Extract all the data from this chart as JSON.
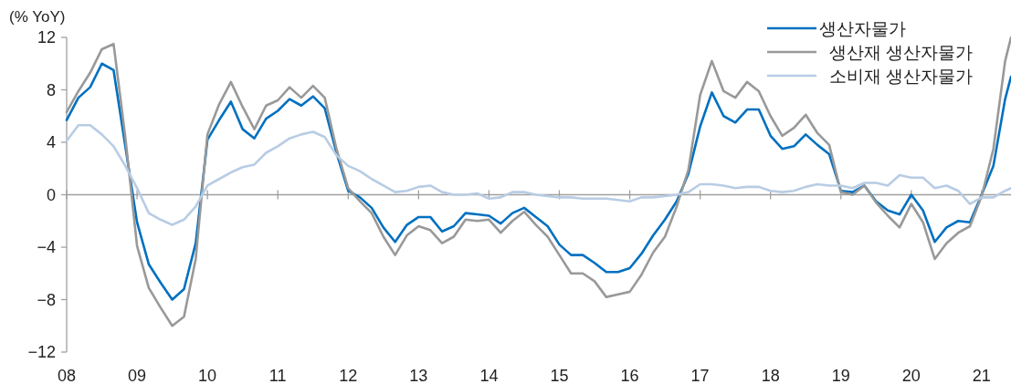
{
  "chart_data": {
    "type": "line",
    "ylabel": "(% YoY)",
    "x": [
      "2008-01",
      "2008-03",
      "2008-05",
      "2008-07",
      "2008-09",
      "2008-11",
      "2009-01",
      "2009-03",
      "2009-05",
      "2009-07",
      "2009-09",
      "2009-11",
      "2010-01",
      "2010-03",
      "2010-05",
      "2010-07",
      "2010-09",
      "2010-11",
      "2011-01",
      "2011-03",
      "2011-05",
      "2011-07",
      "2011-09",
      "2011-11",
      "2012-01",
      "2012-03",
      "2012-05",
      "2012-07",
      "2012-09",
      "2012-11",
      "2013-01",
      "2013-03",
      "2013-05",
      "2013-07",
      "2013-09",
      "2013-11",
      "2014-01",
      "2014-03",
      "2014-05",
      "2014-07",
      "2014-09",
      "2014-11",
      "2015-01",
      "2015-03",
      "2015-05",
      "2015-07",
      "2015-09",
      "2015-11",
      "2016-01",
      "2016-03",
      "2016-05",
      "2016-07",
      "2016-09",
      "2016-11",
      "2017-01",
      "2017-03",
      "2017-05",
      "2017-07",
      "2017-09",
      "2017-11",
      "2018-01",
      "2018-03",
      "2018-05",
      "2018-07",
      "2018-09",
      "2018-11",
      "2019-01",
      "2019-03",
      "2019-05",
      "2019-07",
      "2019-09",
      "2019-11",
      "2020-01",
      "2020-03",
      "2020-05",
      "2020-07",
      "2020-09",
      "2020-11",
      "2021-01",
      "2021-03",
      "2021-05",
      "2021-06"
    ],
    "series": [
      {
        "name": "생산자물가",
        "color": "#0070c0",
        "values": [
          5.7,
          7.4,
          8.2,
          10.0,
          9.5,
          3.7,
          -2.1,
          -5.3,
          -6.7,
          -8.0,
          -7.2,
          -3.7,
          4.2,
          5.7,
          7.1,
          5.0,
          4.3,
          5.8,
          6.4,
          7.3,
          6.8,
          7.5,
          6.6,
          3.2,
          0.3,
          -0.2,
          -1.0,
          -2.5,
          -3.6,
          -2.3,
          -1.7,
          -1.7,
          -2.8,
          -2.4,
          -1.4,
          -1.5,
          -1.6,
          -2.2,
          -1.4,
          -1.0,
          -1.7,
          -2.4,
          -3.8,
          -4.6,
          -4.6,
          -5.2,
          -5.9,
          -5.9,
          -5.6,
          -4.5,
          -3.1,
          -1.9,
          -0.5,
          1.6,
          5.2,
          7.8,
          6.0,
          5.5,
          6.5,
          6.5,
          4.5,
          3.5,
          3.7,
          4.6,
          3.8,
          3.1,
          0.3,
          0.2,
          0.7,
          -0.5,
          -1.2,
          -1.5,
          0.0,
          -1.2,
          -3.6,
          -2.5,
          -2.0,
          -2.1,
          0.0,
          2.2,
          7.3,
          9.0
        ]
      },
      {
        "name": "  생산재 생산자물가",
        "color": "#999999",
        "values": [
          6.3,
          7.9,
          9.3,
          11.1,
          11.5,
          4.4,
          -3.9,
          -7.1,
          -8.6,
          -10.0,
          -9.3,
          -4.9,
          4.6,
          6.9,
          8.6,
          6.7,
          5.0,
          6.8,
          7.2,
          8.2,
          7.4,
          8.3,
          7.4,
          3.5,
          0.5,
          -0.5,
          -1.4,
          -3.2,
          -4.6,
          -3.1,
          -2.4,
          -2.7,
          -3.7,
          -3.2,
          -1.9,
          -2.0,
          -1.9,
          -2.9,
          -2.0,
          -1.3,
          -2.3,
          -3.2,
          -4.6,
          -6.0,
          -6.0,
          -6.6,
          -7.8,
          -7.6,
          -7.4,
          -6.1,
          -4.4,
          -3.2,
          -0.9,
          1.9,
          7.6,
          10.2,
          7.9,
          7.4,
          8.6,
          7.9,
          6.0,
          4.5,
          5.1,
          6.1,
          4.7,
          3.8,
          0.2,
          0.0,
          0.7,
          -0.6,
          -1.6,
          -2.5,
          -0.7,
          -2.1,
          -4.9,
          -3.7,
          -2.9,
          -2.4,
          -0.1,
          3.5,
          10.2,
          12.0
        ]
      },
      {
        "name": "  소비재 생산자물가",
        "color": "#b8cce4",
        "values": [
          4.1,
          5.3,
          5.3,
          4.6,
          3.7,
          2.2,
          0.5,
          -1.4,
          -1.9,
          -2.3,
          -1.9,
          -0.9,
          0.7,
          1.2,
          1.7,
          2.1,
          2.3,
          3.2,
          3.7,
          4.3,
          4.6,
          4.8,
          4.4,
          3.0,
          2.2,
          1.8,
          1.2,
          0.7,
          0.2,
          0.3,
          0.6,
          0.7,
          0.2,
          0.0,
          0.0,
          0.1,
          -0.3,
          -0.2,
          0.2,
          0.2,
          0.0,
          -0.1,
          -0.2,
          -0.2,
          -0.3,
          -0.3,
          -0.3,
          -0.4,
          -0.5,
          -0.2,
          -0.2,
          -0.1,
          0.0,
          0.2,
          0.8,
          0.8,
          0.7,
          0.5,
          0.6,
          0.6,
          0.3,
          0.2,
          0.3,
          0.6,
          0.8,
          0.7,
          0.7,
          0.5,
          0.9,
          0.9,
          0.7,
          1.5,
          1.3,
          1.3,
          0.5,
          0.7,
          0.3,
          -0.7,
          -0.2,
          -0.2,
          0.3,
          0.5
        ]
      }
    ],
    "xlim": [
      "2008-01",
      "2021-06"
    ],
    "xticks": [
      {
        "value": "2008-01",
        "label": "08"
      },
      {
        "value": "2009-01",
        "label": "09"
      },
      {
        "value": "2010-01",
        "label": "10"
      },
      {
        "value": "2011-01",
        "label": "11"
      },
      {
        "value": "2012-01",
        "label": "12"
      },
      {
        "value": "2013-01",
        "label": "13"
      },
      {
        "value": "2014-01",
        "label": "14"
      },
      {
        "value": "2015-01",
        "label": "15"
      },
      {
        "value": "2016-01",
        "label": "16"
      },
      {
        "value": "2017-01",
        "label": "17"
      },
      {
        "value": "2018-01",
        "label": "18"
      },
      {
        "value": "2019-01",
        "label": "19"
      },
      {
        "value": "2020-01",
        "label": "20"
      },
      {
        "value": "2021-01",
        "label": "21"
      }
    ],
    "ylim": [
      -12,
      12
    ],
    "yticks": [
      {
        "value": -12,
        "label": "−12"
      },
      {
        "value": -8,
        "label": "−8"
      },
      {
        "value": -4,
        "label": "−4"
      },
      0,
      4,
      8,
      12
    ],
    "ref_lines": [
      {
        "axis": "y",
        "value": 0,
        "color": "#a0a0a0"
      }
    ],
    "legend": "top right",
    "marker": "none",
    "line_style": "solid"
  }
}
